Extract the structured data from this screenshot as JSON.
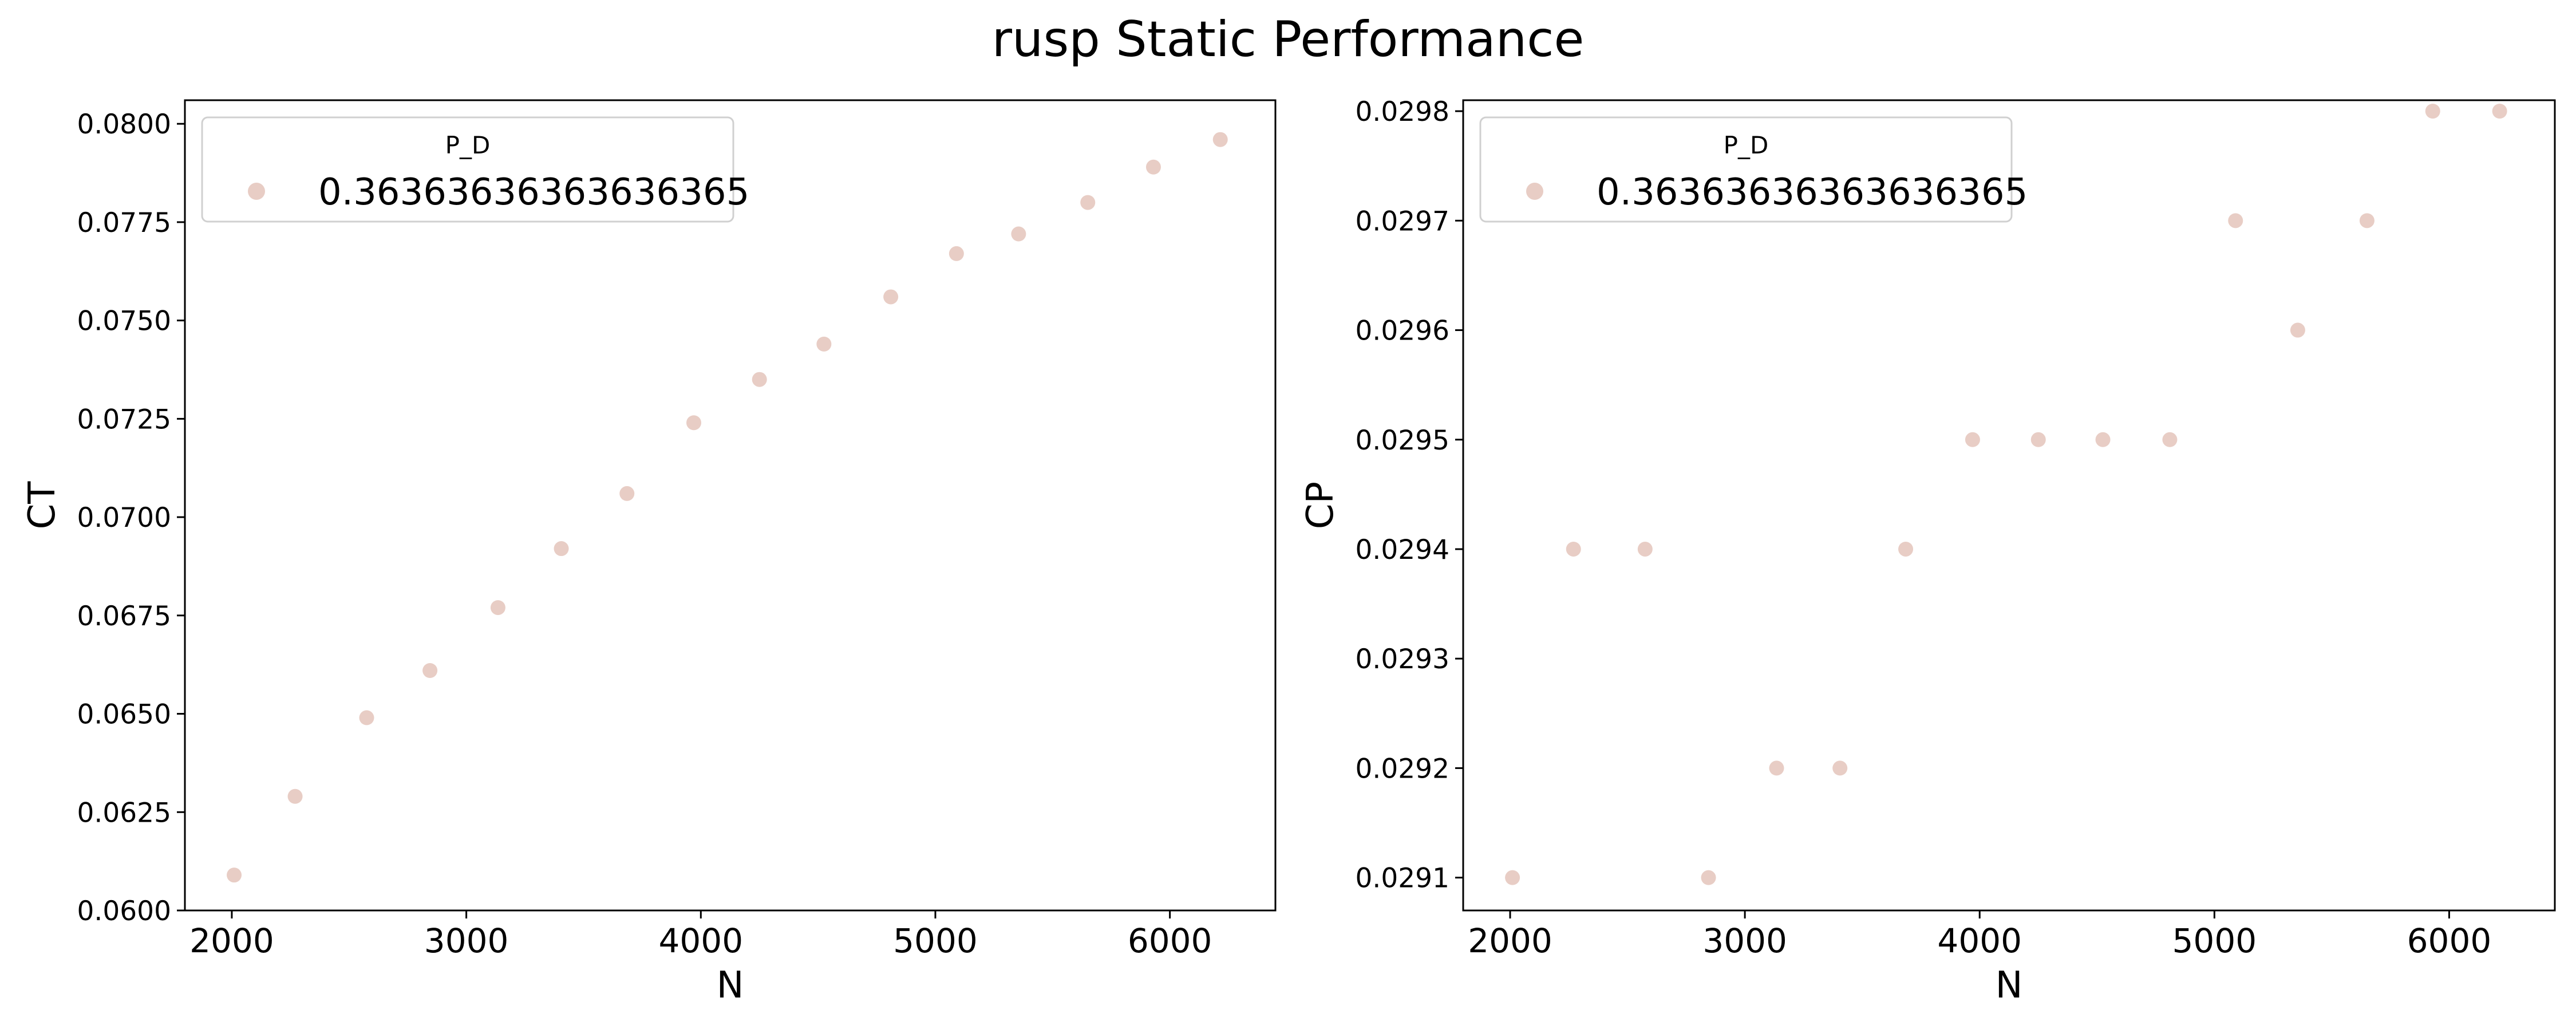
{
  "figure": {
    "title": "rusp Static Performance",
    "point_color": "#e8cdc5"
  },
  "chart_data": [
    {
      "type": "scatter",
      "xlabel": "N",
      "ylabel": "CT",
      "xlim": [
        1800,
        6450
      ],
      "ylim": [
        0.06,
        0.0806
      ],
      "xticks": [
        2000,
        3000,
        4000,
        5000,
        6000
      ],
      "yticks": [
        0.06,
        0.0625,
        0.065,
        0.0675,
        0.07,
        0.0725,
        0.075,
        0.0775,
        0.08
      ],
      "ytick_labels": [
        "0.0600",
        "0.0625",
        "0.0650",
        "0.0675",
        "0.0700",
        "0.0725",
        "0.0750",
        "0.0775",
        "0.0800"
      ],
      "legend": {
        "title": "P_D",
        "position": "top-left",
        "entries": [
          "0.36363636363636365"
        ]
      },
      "series": [
        {
          "name": "0.36363636363636365",
          "x": [
            2010,
            2270,
            2575,
            2845,
            3135,
            3405,
            3685,
            3970,
            4250,
            4525,
            4810,
            5090,
            5355,
            5650,
            5930,
            6215
          ],
          "y": [
            0.0609,
            0.0629,
            0.0649,
            0.0661,
            0.0677,
            0.0692,
            0.0706,
            0.0724,
            0.0735,
            0.0744,
            0.0756,
            0.0767,
            0.0772,
            0.078,
            0.0789,
            0.0796
          ]
        }
      ]
    },
    {
      "type": "scatter",
      "xlabel": "N",
      "ylabel": "CP",
      "xlim": [
        1800,
        6450
      ],
      "ylim": [
        0.02907,
        0.02981
      ],
      "xticks": [
        2000,
        3000,
        4000,
        5000,
        6000
      ],
      "yticks": [
        0.0291,
        0.0292,
        0.0293,
        0.0294,
        0.0295,
        0.0296,
        0.0297,
        0.0298
      ],
      "ytick_labels": [
        "0.0291",
        "0.0292",
        "0.0293",
        "0.0294",
        "0.0295",
        "0.0296",
        "0.0297",
        "0.0298"
      ],
      "legend": {
        "title": "P_D",
        "position": "top-left",
        "entries": [
          "0.36363636363636365"
        ]
      },
      "series": [
        {
          "name": "0.36363636363636365",
          "x": [
            2010,
            2270,
            2575,
            2845,
            3135,
            3405,
            3685,
            3970,
            4250,
            4525,
            4810,
            5090,
            5355,
            5650,
            5930,
            6215
          ],
          "y": [
            0.0291,
            0.0294,
            0.0294,
            0.0291,
            0.0292,
            0.0292,
            0.0294,
            0.0295,
            0.0295,
            0.0295,
            0.0295,
            0.0297,
            0.0296,
            0.0297,
            0.0298,
            0.0298
          ]
        }
      ]
    }
  ]
}
